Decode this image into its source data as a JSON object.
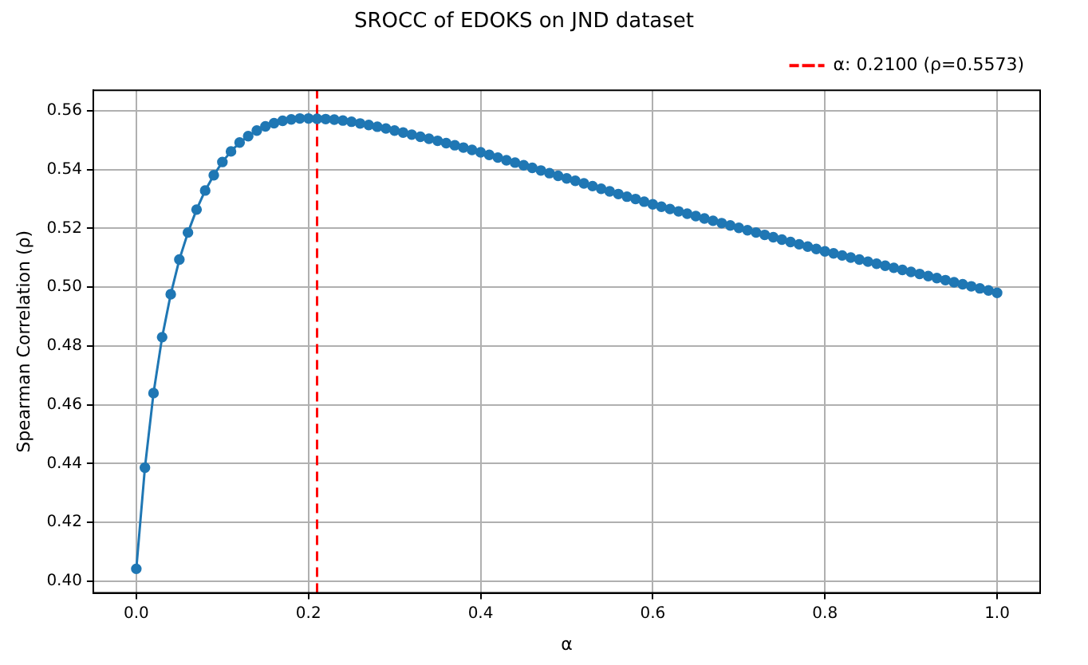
{
  "chart_data": {
    "type": "line",
    "title": "SROCC of EDOKS on JND dataset",
    "xlabel": "α",
    "ylabel": "Spearman Correlation (ρ)",
    "x": [
      0,
      0.01,
      0.02,
      0.03,
      0.04,
      0.05,
      0.06,
      0.07,
      0.08,
      0.09,
      0.1,
      0.11,
      0.12,
      0.13,
      0.14,
      0.15,
      0.16,
      0.17,
      0.18,
      0.19,
      0.2,
      0.21,
      0.22,
      0.23,
      0.24,
      0.25,
      0.26,
      0.27,
      0.28,
      0.29,
      0.3,
      0.31,
      0.32,
      0.33,
      0.34,
      0.35,
      0.36,
      0.37,
      0.38,
      0.39,
      0.4,
      0.41,
      0.42,
      0.43,
      0.44,
      0.45,
      0.46,
      0.47,
      0.48,
      0.49,
      0.5,
      0.51,
      0.52,
      0.53,
      0.54,
      0.55,
      0.56,
      0.57,
      0.58,
      0.59,
      0.6,
      0.61,
      0.62,
      0.63,
      0.64,
      0.65,
      0.66,
      0.67,
      0.68,
      0.69,
      0.7,
      0.71,
      0.72,
      0.73,
      0.74,
      0.75,
      0.76,
      0.77,
      0.78,
      0.79,
      0.8,
      0.81,
      0.82,
      0.83,
      0.84,
      0.85,
      0.86,
      0.87,
      0.88,
      0.89,
      0.9,
      0.91,
      0.92,
      0.93,
      0.94,
      0.95,
      0.96,
      0.97,
      0.98,
      0.99,
      1.0
    ],
    "series": [
      {
        "color": "#1f77b4",
        "values": [
          0.4042,
          0.4386,
          0.464,
          0.483,
          0.4976,
          0.5094,
          0.5186,
          0.5264,
          0.5329,
          0.5381,
          0.5426,
          0.5462,
          0.5492,
          0.5514,
          0.5533,
          0.5547,
          0.5558,
          0.5566,
          0.5571,
          0.5574,
          0.5574,
          0.5573,
          0.5572,
          0.557,
          0.5567,
          0.5563,
          0.5557,
          0.5552,
          0.5546,
          0.554,
          0.5533,
          0.5526,
          0.5519,
          0.5512,
          0.5505,
          0.5498,
          0.549,
          0.5483,
          0.5475,
          0.5467,
          0.5459,
          0.545,
          0.5441,
          0.5432,
          0.5424,
          0.5415,
          0.5406,
          0.5397,
          0.5388,
          0.5379,
          0.537,
          0.5362,
          0.5353,
          0.5344,
          0.5335,
          0.5326,
          0.5317,
          0.5308,
          0.53,
          0.5291,
          0.5282,
          0.5274,
          0.5266,
          0.5258,
          0.525,
          0.5242,
          0.5234,
          0.5226,
          0.5218,
          0.521,
          0.5202,
          0.5194,
          0.5186,
          0.5178,
          0.517,
          0.5162,
          0.5154,
          0.5146,
          0.5138,
          0.513,
          0.5122,
          0.5115,
          0.5108,
          0.5101,
          0.5094,
          0.5087,
          0.508,
          0.5073,
          0.5066,
          0.5059,
          0.5052,
          0.5045,
          0.5038,
          0.5031,
          0.5024,
          0.5017,
          0.501,
          0.5003,
          0.4996,
          0.4989,
          0.4981
        ]
      }
    ],
    "xlim": [
      -0.05,
      1.05
    ],
    "xticks": [
      {
        "value": 0,
        "label": "0.0"
      },
      {
        "value": 0.2,
        "label": "0.2"
      },
      {
        "value": 0.4,
        "label": "0.4"
      },
      {
        "value": 0.6,
        "label": "0.6"
      },
      {
        "value": 0.8,
        "label": "0.8"
      },
      {
        "value": 1.0,
        "label": "1.0"
      }
    ],
    "ylim": [
      0.396,
      0.567
    ],
    "yticks": [
      {
        "value": 0.4,
        "label": "0.40"
      },
      {
        "value": 0.42,
        "label": "0.42"
      },
      {
        "value": 0.44,
        "label": "0.44"
      },
      {
        "value": 0.46,
        "label": "0.46"
      },
      {
        "value": 0.48,
        "label": "0.48"
      },
      {
        "value": 0.5,
        "label": "0.50"
      },
      {
        "value": 0.52,
        "label": "0.52"
      },
      {
        "value": 0.54,
        "label": "0.54"
      },
      {
        "value": 0.56,
        "label": "0.56"
      }
    ],
    "ref_lines": [
      {
        "axis": "x",
        "value": 0.21,
        "label": "α: 0.2100 (ρ=0.5573)",
        "color": "#ff0000",
        "line_style": "dashed"
      }
    ],
    "grid": true,
    "legend": "top right",
    "marker": "circle",
    "line_style": "solid"
  }
}
